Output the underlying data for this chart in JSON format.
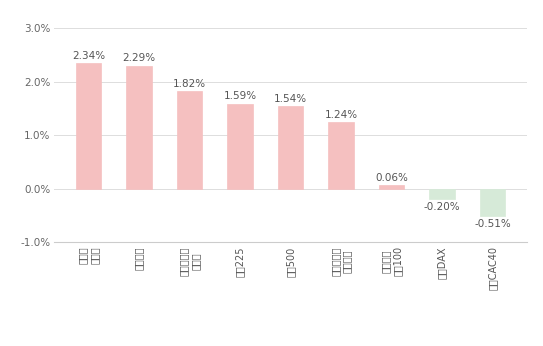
{
  "categories": [
    "恒生科\n技指数",
    "恒生指数",
    "纳斯达克综\n合指数",
    "日经225",
    "标普500",
    "道琼斯工业\n平均指数",
    "法兰克福\n指数100",
    "德国DAX",
    "法国CAC40"
  ],
  "values": [
    2.34,
    2.29,
    1.82,
    1.59,
    1.54,
    1.24,
    0.06,
    -0.2,
    -0.51
  ],
  "labels": [
    "2.34%",
    "2.29%",
    "1.82%",
    "1.59%",
    "1.54%",
    "1.24%",
    "0.06%",
    "-0.20%",
    "-0.51%"
  ],
  "bar_colors_pos": "#f5c0c0",
  "bar_colors_neg": "#d6ead8",
  "ylim": [
    -1.0,
    3.2
  ],
  "yticks": [
    -1.0,
    0.0,
    1.0,
    2.0,
    3.0
  ],
  "ytick_labels": [
    "-1.0%",
    "0.0%",
    "1.0%",
    "2.0%",
    "3.0%"
  ],
  "background_color": "#ffffff",
  "grid_color": "#dddddd",
  "label_fontsize": 7,
  "tick_fontsize": 7.5,
  "value_fontsize": 7.5,
  "bar_width": 0.5
}
